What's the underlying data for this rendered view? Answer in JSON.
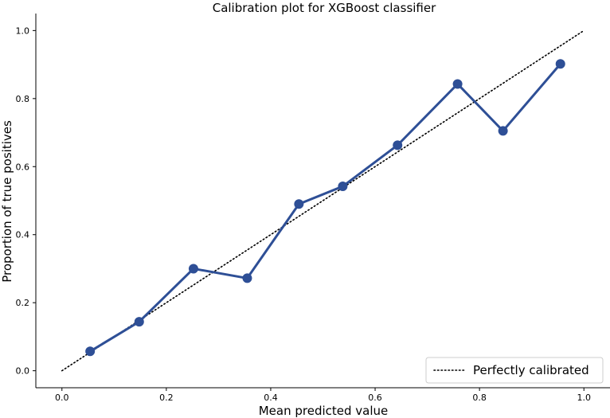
{
  "chart_data": {
    "type": "line",
    "title": "Calibration plot for XGBoost classifier",
    "xlabel": "Mean predicted value",
    "ylabel": "Proportion of true positives",
    "xlim": [
      -0.05,
      1.05
    ],
    "ylim": [
      -0.05,
      1.05
    ],
    "xticks": [
      0.0,
      0.2,
      0.4,
      0.6,
      0.8,
      1.0
    ],
    "yticks": [
      0.0,
      0.2,
      0.4,
      0.6,
      0.8,
      1.0
    ],
    "xtick_labels": [
      "0.0",
      "0.2",
      "0.4",
      "0.6",
      "0.8",
      "1.0"
    ],
    "ytick_labels": [
      "0.0",
      "0.2",
      "0.4",
      "0.6",
      "0.8",
      "1.0"
    ],
    "grid": false,
    "legend": {
      "position": "bottom-right",
      "entries": [
        "Perfectly calibrated"
      ]
    },
    "reference_line": {
      "name": "Perfectly calibrated",
      "x": [
        0.0,
        1.0
      ],
      "y": [
        0.0,
        1.0
      ],
      "style": "dotted",
      "color": "#000000"
    },
    "series": [
      {
        "color": "#2e4f96",
        "x": [
          0.054,
          0.148,
          0.252,
          0.355,
          0.454,
          0.538,
          0.643,
          0.758,
          0.845,
          0.955
        ],
        "y": [
          0.057,
          0.144,
          0.3,
          0.272,
          0.49,
          0.542,
          0.663,
          0.843,
          0.705,
          0.902
        ]
      }
    ]
  }
}
